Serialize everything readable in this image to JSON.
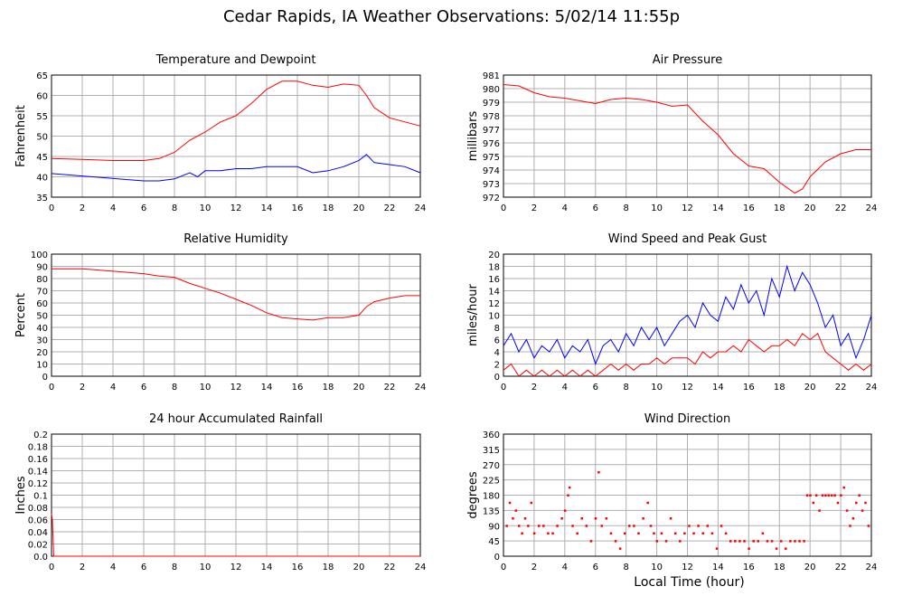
{
  "page": {
    "title": "Cedar Rapids, IA Weather Observations: 5/02/14 11:55p",
    "x_axis_title": "Local Time (hour)"
  },
  "colors": {
    "red": "#ff0000",
    "blue": "#0000ff",
    "grid": "#b0b0b0"
  },
  "chart_data": [
    {
      "type": "line",
      "title": "Temperature and Dewpoint",
      "ylabel": "Fahrenheit",
      "xlim": [
        0,
        24
      ],
      "ylim": [
        35,
        65
      ],
      "yticks": [
        35,
        40,
        45,
        50,
        55,
        60,
        65
      ],
      "xticks": [
        0,
        2,
        4,
        6,
        8,
        10,
        12,
        14,
        16,
        18,
        20,
        22,
        24
      ],
      "grid": true,
      "series": [
        {
          "color": "#ff0000",
          "x": [
            0,
            2,
            4,
            6,
            7,
            8,
            9,
            10,
            11,
            12,
            13,
            14,
            15,
            16,
            17,
            18,
            19,
            20,
            20.5,
            21,
            22,
            23,
            24
          ],
          "y": [
            44.5,
            44.3,
            44.0,
            44.0,
            44.5,
            46.0,
            49.0,
            51.0,
            53.5,
            55.0,
            58.0,
            61.5,
            63.5,
            63.5,
            62.5,
            62.0,
            62.8,
            62.5,
            60.0,
            57.0,
            54.5,
            53.5,
            52.5
          ]
        },
        {
          "color": "#0000ff",
          "x": [
            0,
            2,
            4,
            6,
            7,
            8,
            9,
            9.5,
            10,
            11,
            12,
            13,
            14,
            15,
            16,
            17,
            18,
            19,
            20,
            20.5,
            21,
            22,
            23,
            24
          ],
          "y": [
            40.8,
            40.2,
            39.6,
            39.0,
            39.0,
            39.5,
            41.0,
            40.0,
            41.5,
            41.5,
            42.0,
            42.0,
            42.5,
            42.5,
            42.5,
            41.0,
            41.5,
            42.5,
            44.0,
            45.5,
            43.5,
            43.0,
            42.5,
            41.0
          ]
        }
      ]
    },
    {
      "type": "line",
      "title": "Air Pressure",
      "ylabel": "millibars",
      "xlim": [
        0,
        24
      ],
      "ylim": [
        972,
        981
      ],
      "yticks": [
        972,
        973,
        974,
        975,
        976,
        977,
        978,
        979,
        980,
        981
      ],
      "xticks": [
        0,
        2,
        4,
        6,
        8,
        10,
        12,
        14,
        16,
        18,
        20,
        22,
        24
      ],
      "grid": true,
      "series": [
        {
          "color": "#ff0000",
          "x": [
            0,
            1,
            2,
            3,
            4,
            5,
            6,
            7,
            8,
            9,
            10,
            11,
            12,
            12.5,
            13,
            14,
            15,
            16,
            17,
            18,
            19,
            19.5,
            20,
            21,
            22,
            23,
            24
          ],
          "y": [
            980.3,
            980.2,
            979.7,
            979.4,
            979.3,
            979.1,
            978.9,
            979.2,
            979.3,
            979.2,
            979.0,
            978.7,
            978.8,
            978.2,
            977.6,
            976.6,
            975.2,
            974.3,
            974.1,
            973.1,
            972.3,
            972.6,
            973.5,
            974.6,
            975.2,
            975.5,
            975.5
          ]
        }
      ]
    },
    {
      "type": "line",
      "title": "Relative Humidity",
      "ylabel": "Percent",
      "xlim": [
        0,
        24
      ],
      "ylim": [
        0,
        100
      ],
      "yticks": [
        0,
        10,
        20,
        30,
        40,
        50,
        60,
        70,
        80,
        90,
        100
      ],
      "xticks": [
        0,
        2,
        4,
        6,
        8,
        10,
        12,
        14,
        16,
        18,
        20,
        22,
        24
      ],
      "grid": true,
      "series": [
        {
          "color": "#ff0000",
          "x": [
            0,
            2,
            4,
            6,
            7,
            8,
            9,
            10,
            11,
            12,
            13,
            14,
            15,
            16,
            17,
            18,
            19,
            20,
            20.5,
            21,
            22,
            23,
            24
          ],
          "y": [
            88,
            88,
            86,
            84,
            82,
            81,
            76,
            72,
            68,
            63,
            58,
            52,
            48,
            47,
            46,
            48,
            48,
            50,
            57,
            61,
            64,
            66,
            66
          ]
        }
      ]
    },
    {
      "type": "line",
      "title": "Wind Speed and Peak Gust",
      "ylabel": "miles/hour",
      "xlim": [
        0,
        24
      ],
      "ylim": [
        0,
        20
      ],
      "yticks": [
        0,
        2,
        4,
        6,
        8,
        10,
        12,
        14,
        16,
        18,
        20
      ],
      "xticks": [
        0,
        2,
        4,
        6,
        8,
        10,
        12,
        14,
        16,
        18,
        20,
        22,
        24
      ],
      "grid": true,
      "series": [
        {
          "color": "#0000ff",
          "x": [
            0,
            0.5,
            1,
            1.5,
            2,
            2.5,
            3,
            3.5,
            4,
            4.5,
            5,
            5.5,
            6,
            6.5,
            7,
            7.5,
            8,
            8.5,
            9,
            9.5,
            10,
            10.5,
            11,
            11.5,
            12,
            12.5,
            13,
            13.5,
            14,
            14.5,
            15,
            15.5,
            16,
            16.5,
            17,
            17.5,
            18,
            18.5,
            19,
            19.5,
            20,
            20.5,
            21,
            21.5,
            22,
            22.5,
            23,
            23.5,
            24
          ],
          "y": [
            5,
            7,
            4,
            6,
            3,
            5,
            4,
            6,
            3,
            5,
            4,
            6,
            2,
            5,
            6,
            4,
            7,
            5,
            8,
            6,
            8,
            5,
            7,
            9,
            10,
            8,
            12,
            10,
            9,
            13,
            11,
            15,
            12,
            14,
            10,
            16,
            13,
            18,
            14,
            17,
            15,
            12,
            8,
            10,
            5,
            7,
            3,
            6,
            10
          ]
        },
        {
          "color": "#ff0000",
          "x": [
            0,
            0.5,
            1,
            1.5,
            2,
            2.5,
            3,
            3.5,
            4,
            4.5,
            5,
            5.5,
            6,
            6.5,
            7,
            7.5,
            8,
            8.5,
            9,
            9.5,
            10,
            10.5,
            11,
            11.5,
            12,
            12.5,
            13,
            13.5,
            14,
            14.5,
            15,
            15.5,
            16,
            16.5,
            17,
            17.5,
            18,
            18.5,
            19,
            19.5,
            20,
            20.5,
            21,
            21.5,
            22,
            22.5,
            23,
            23.5,
            24
          ],
          "y": [
            1,
            2,
            0,
            1,
            0,
            1,
            0,
            1,
            0,
            1,
            0,
            1,
            0,
            1,
            2,
            1,
            2,
            1,
            2,
            2,
            3,
            2,
            3,
            3,
            3,
            2,
            4,
            3,
            4,
            4,
            5,
            4,
            6,
            5,
            4,
            5,
            5,
            6,
            5,
            7,
            6,
            7,
            4,
            3,
            2,
            1,
            2,
            1,
            2
          ]
        }
      ]
    },
    {
      "type": "line",
      "title": "24 hour Accumulated Rainfall",
      "ylabel": "Inches",
      "xlim": [
        0,
        24
      ],
      "ylim": [
        0,
        0.2
      ],
      "yticks": [
        0.0,
        0.02,
        0.04,
        0.06,
        0.08,
        0.1,
        0.12,
        0.14,
        0.16,
        0.18,
        0.2
      ],
      "yticklabels": [
        "0.0",
        "0.02",
        "0.04",
        "0.06",
        "0.08",
        "0.1",
        "0.12",
        "0.14",
        "0.16",
        "0.18",
        "0.2"
      ],
      "xticks": [
        0,
        2,
        4,
        6,
        8,
        10,
        12,
        14,
        16,
        18,
        20,
        22,
        24
      ],
      "grid": true,
      "series": [
        {
          "color": "#ff0000",
          "x": [
            0,
            0.05,
            0.15,
            0.2,
            24
          ],
          "y": [
            0.07,
            0.06,
            0.0,
            0.0,
            0.0
          ]
        }
      ]
    },
    {
      "type": "scatter",
      "title": "Wind Direction",
      "ylabel": "degrees",
      "xlabel": "Local Time (hour)",
      "xlim": [
        0,
        24
      ],
      "ylim": [
        0,
        360
      ],
      "yticks": [
        0,
        45,
        90,
        135,
        180,
        225,
        270,
        315,
        360
      ],
      "xticks": [
        0,
        2,
        4,
        6,
        8,
        10,
        12,
        14,
        16,
        18,
        20,
        22,
        24
      ],
      "grid": true,
      "series": [
        {
          "color": "#ff0000",
          "x": [
            0.2,
            0.4,
            0.6,
            0.8,
            1.0,
            1.2,
            1.4,
            1.6,
            1.8,
            2.0,
            2.3,
            2.6,
            2.9,
            3.2,
            3.5,
            3.8,
            4.0,
            4.2,
            4.3,
            4.5,
            4.8,
            5.1,
            5.4,
            5.7,
            6.0,
            6.2,
            6.4,
            6.7,
            7.0,
            7.3,
            7.6,
            7.9,
            8.2,
            8.5,
            8.8,
            9.1,
            9.4,
            9.6,
            9.8,
            10.0,
            10.3,
            10.6,
            10.9,
            11.2,
            11.5,
            11.8,
            12.1,
            12.4,
            12.7,
            13.0,
            13.3,
            13.6,
            13.9,
            14.2,
            14.5,
            14.8,
            15.1,
            15.4,
            15.7,
            16.0,
            16.3,
            16.6,
            16.9,
            17.2,
            17.5,
            17.8,
            18.1,
            18.4,
            18.7,
            19.0,
            19.3,
            19.6,
            19.8,
            20.0,
            20.2,
            20.4,
            20.6,
            20.8,
            21.0,
            21.2,
            21.4,
            21.6,
            21.8,
            22.0,
            22.2,
            22.4,
            22.6,
            22.8,
            23.0,
            23.2,
            23.4,
            23.6,
            23.8
          ],
          "y": [
            90,
            158,
            112,
            135,
            90,
            68,
            112,
            90,
            158,
            68,
            90,
            90,
            68,
            68,
            90,
            112,
            135,
            180,
            203,
            90,
            68,
            112,
            90,
            45,
            112,
            248,
            90,
            112,
            68,
            45,
            23,
            68,
            90,
            90,
            68,
            112,
            158,
            90,
            68,
            45,
            68,
            45,
            112,
            68,
            45,
            68,
            90,
            68,
            90,
            68,
            90,
            68,
            23,
            90,
            68,
            45,
            45,
            45,
            45,
            23,
            45,
            45,
            68,
            45,
            45,
            23,
            45,
            23,
            45,
            45,
            45,
            45,
            180,
            180,
            158,
            180,
            135,
            180,
            180,
            180,
            180,
            180,
            158,
            180,
            203,
            135,
            90,
            112,
            158,
            180,
            135,
            158,
            90
          ]
        }
      ]
    }
  ]
}
